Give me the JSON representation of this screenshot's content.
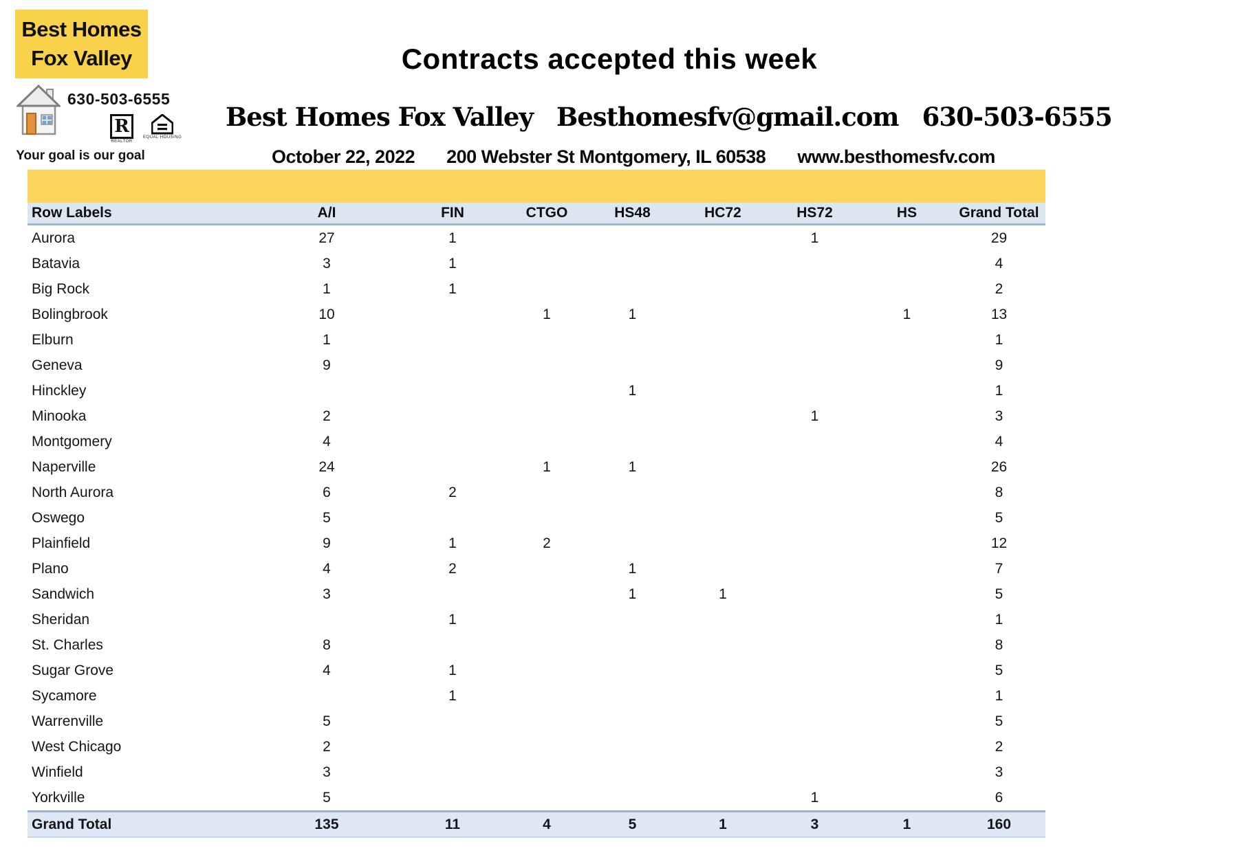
{
  "page": {
    "title": "Contracts accepted this week"
  },
  "logo": {
    "name_line1": "Best Homes",
    "name_line2": "Fox Valley",
    "phone": "630-503-6555",
    "tagline": "Your goal is our goal",
    "realtor_label": "REALTOR",
    "equal_housing_label": "EQUAL HOUSING"
  },
  "header": {
    "company": "Best Homes Fox Valley",
    "email": "Besthomesfv@gmail.com",
    "phone": "630-503-6555",
    "date": "October 22, 2022",
    "address": "200 Webster St Montgomery, IL 60538",
    "website": "www.besthomesfv.com"
  },
  "colors": {
    "logo_yellow": "#FAD14B",
    "bar_yellow": "#FBD45C",
    "header_band_blue": "#DCE6F1",
    "grand_total_band_blue": "#DEE8F4",
    "table_border_blue": "#9FB6D5"
  },
  "table": {
    "headers": [
      "Row Labels",
      "A/I",
      "FIN",
      "CTGO",
      "HS48",
      "HC72",
      "HS72",
      "HS",
      "Grand Total"
    ],
    "rows": [
      {
        "label": "Aurora",
        "values": [
          "27",
          "1",
          "",
          "",
          "",
          "1",
          "",
          "29"
        ]
      },
      {
        "label": "Batavia",
        "values": [
          "3",
          "1",
          "",
          "",
          "",
          "",
          "",
          "4"
        ]
      },
      {
        "label": "Big Rock",
        "values": [
          "1",
          "1",
          "",
          "",
          "",
          "",
          "",
          "2"
        ]
      },
      {
        "label": "Bolingbrook",
        "values": [
          "10",
          "",
          "1",
          "1",
          "",
          "",
          "1",
          "13"
        ]
      },
      {
        "label": "Elburn",
        "values": [
          "1",
          "",
          "",
          "",
          "",
          "",
          "",
          "1"
        ]
      },
      {
        "label": "Geneva",
        "values": [
          "9",
          "",
          "",
          "",
          "",
          "",
          "",
          "9"
        ]
      },
      {
        "label": "Hinckley",
        "values": [
          "",
          "",
          "",
          "1",
          "",
          "",
          "",
          "1"
        ]
      },
      {
        "label": "Minooka",
        "values": [
          "2",
          "",
          "",
          "",
          "",
          "1",
          "",
          "3"
        ]
      },
      {
        "label": "Montgomery",
        "values": [
          "4",
          "",
          "",
          "",
          "",
          "",
          "",
          "4"
        ]
      },
      {
        "label": "Naperville",
        "values": [
          "24",
          "",
          "1",
          "1",
          "",
          "",
          "",
          "26"
        ]
      },
      {
        "label": "North Aurora",
        "values": [
          "6",
          "2",
          "",
          "",
          "",
          "",
          "",
          "8"
        ]
      },
      {
        "label": "Oswego",
        "values": [
          "5",
          "",
          "",
          "",
          "",
          "",
          "",
          "5"
        ]
      },
      {
        "label": "Plainfield",
        "values": [
          "9",
          "1",
          "2",
          "",
          "",
          "",
          "",
          "12"
        ]
      },
      {
        "label": "Plano",
        "values": [
          "4",
          "2",
          "",
          "1",
          "",
          "",
          "",
          "7"
        ]
      },
      {
        "label": "Sandwich",
        "values": [
          "3",
          "",
          "",
          "1",
          "1",
          "",
          "",
          "5"
        ]
      },
      {
        "label": "Sheridan",
        "values": [
          "",
          "1",
          "",
          "",
          "",
          "",
          "",
          "1"
        ]
      },
      {
        "label": "St. Charles",
        "values": [
          "8",
          "",
          "",
          "",
          "",
          "",
          "",
          "8"
        ]
      },
      {
        "label": "Sugar Grove",
        "values": [
          "4",
          "1",
          "",
          "",
          "",
          "",
          "",
          "5"
        ]
      },
      {
        "label": "Sycamore",
        "values": [
          "",
          "1",
          "",
          "",
          "",
          "",
          "",
          "1"
        ]
      },
      {
        "label": "Warrenville",
        "values": [
          "5",
          "",
          "",
          "",
          "",
          "",
          "",
          "5"
        ]
      },
      {
        "label": "West Chicago",
        "values": [
          "2",
          "",
          "",
          "",
          "",
          "",
          "",
          "2"
        ]
      },
      {
        "label": "Winfield",
        "values": [
          "3",
          "",
          "",
          "",
          "",
          "",
          "",
          "3"
        ]
      },
      {
        "label": "Yorkville",
        "values": [
          "5",
          "",
          "",
          "",
          "",
          "1",
          "",
          "6"
        ]
      }
    ],
    "grand_total": {
      "label": "Grand Total",
      "values": [
        "135",
        "11",
        "4",
        "5",
        "1",
        "3",
        "1",
        "160"
      ]
    }
  }
}
